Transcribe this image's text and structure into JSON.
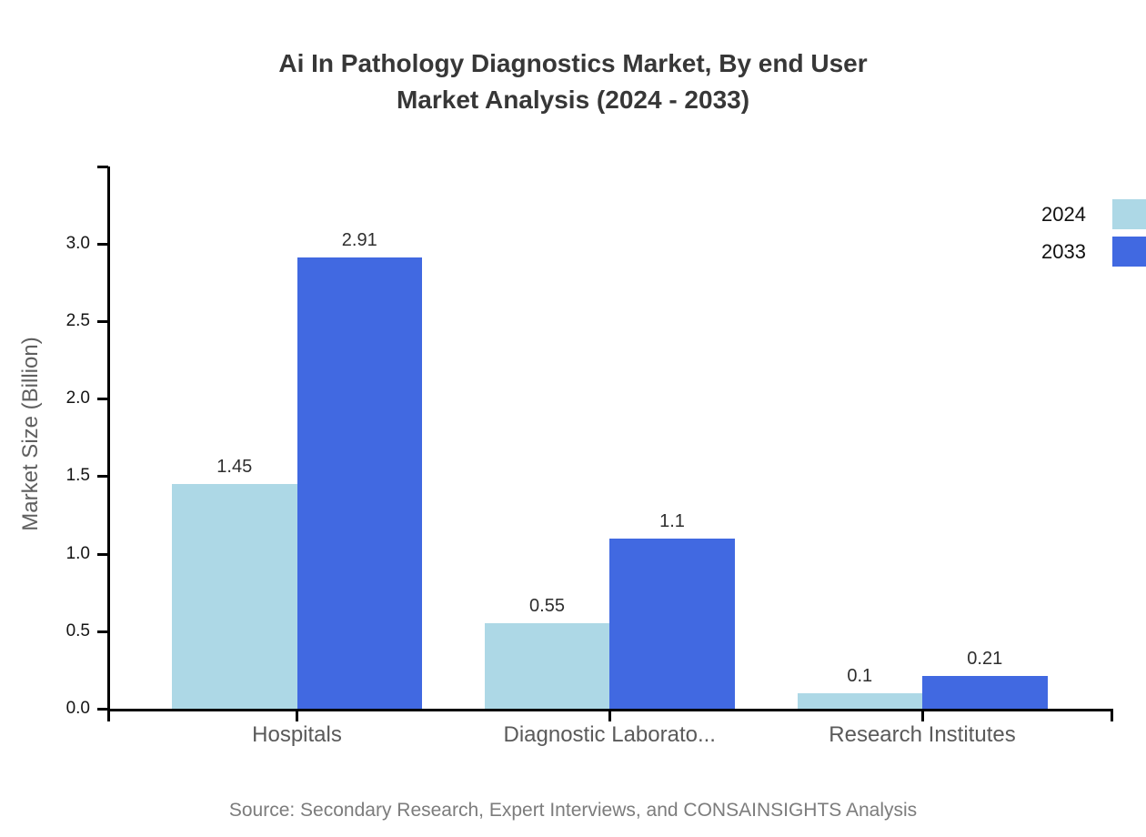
{
  "title": {
    "line1": "Ai In Pathology Diagnostics Market, By end User",
    "line2": "Market Analysis (2024 - 2033)"
  },
  "legend": [
    {
      "label": "2024",
      "color": "#ADD8E6"
    },
    {
      "label": "2033",
      "color": "#4169E1"
    }
  ],
  "source": "Source: Secondary Research, Expert Interviews, and CONSAINSIGHTS Analysis",
  "chart_data": {
    "type": "bar",
    "title": "Ai In Pathology Diagnostics Market, By end User Market Analysis (2024 - 2033)",
    "categories": [
      "Hospitals",
      "Diagnostic Laborato...",
      "Research Institutes"
    ],
    "series": [
      {
        "name": "2024",
        "color": "#ADD8E6",
        "values": [
          1.45,
          0.55,
          0.1
        ]
      },
      {
        "name": "2033",
        "color": "#4169E1",
        "values": [
          2.91,
          1.1,
          0.21
        ]
      }
    ],
    "xlabel": "",
    "ylabel": "Market Size (Billion)",
    "ylim": [
      0,
      3.5
    ],
    "yticks": [
      0.0,
      0.5,
      1.0,
      1.5,
      2.0,
      2.5,
      3.0
    ],
    "ytick_labels": [
      "0.0",
      "0.5",
      "1.0",
      "1.5",
      "2.0",
      "2.5",
      "3.0"
    ],
    "grid": false,
    "legend_position": "top-right"
  }
}
